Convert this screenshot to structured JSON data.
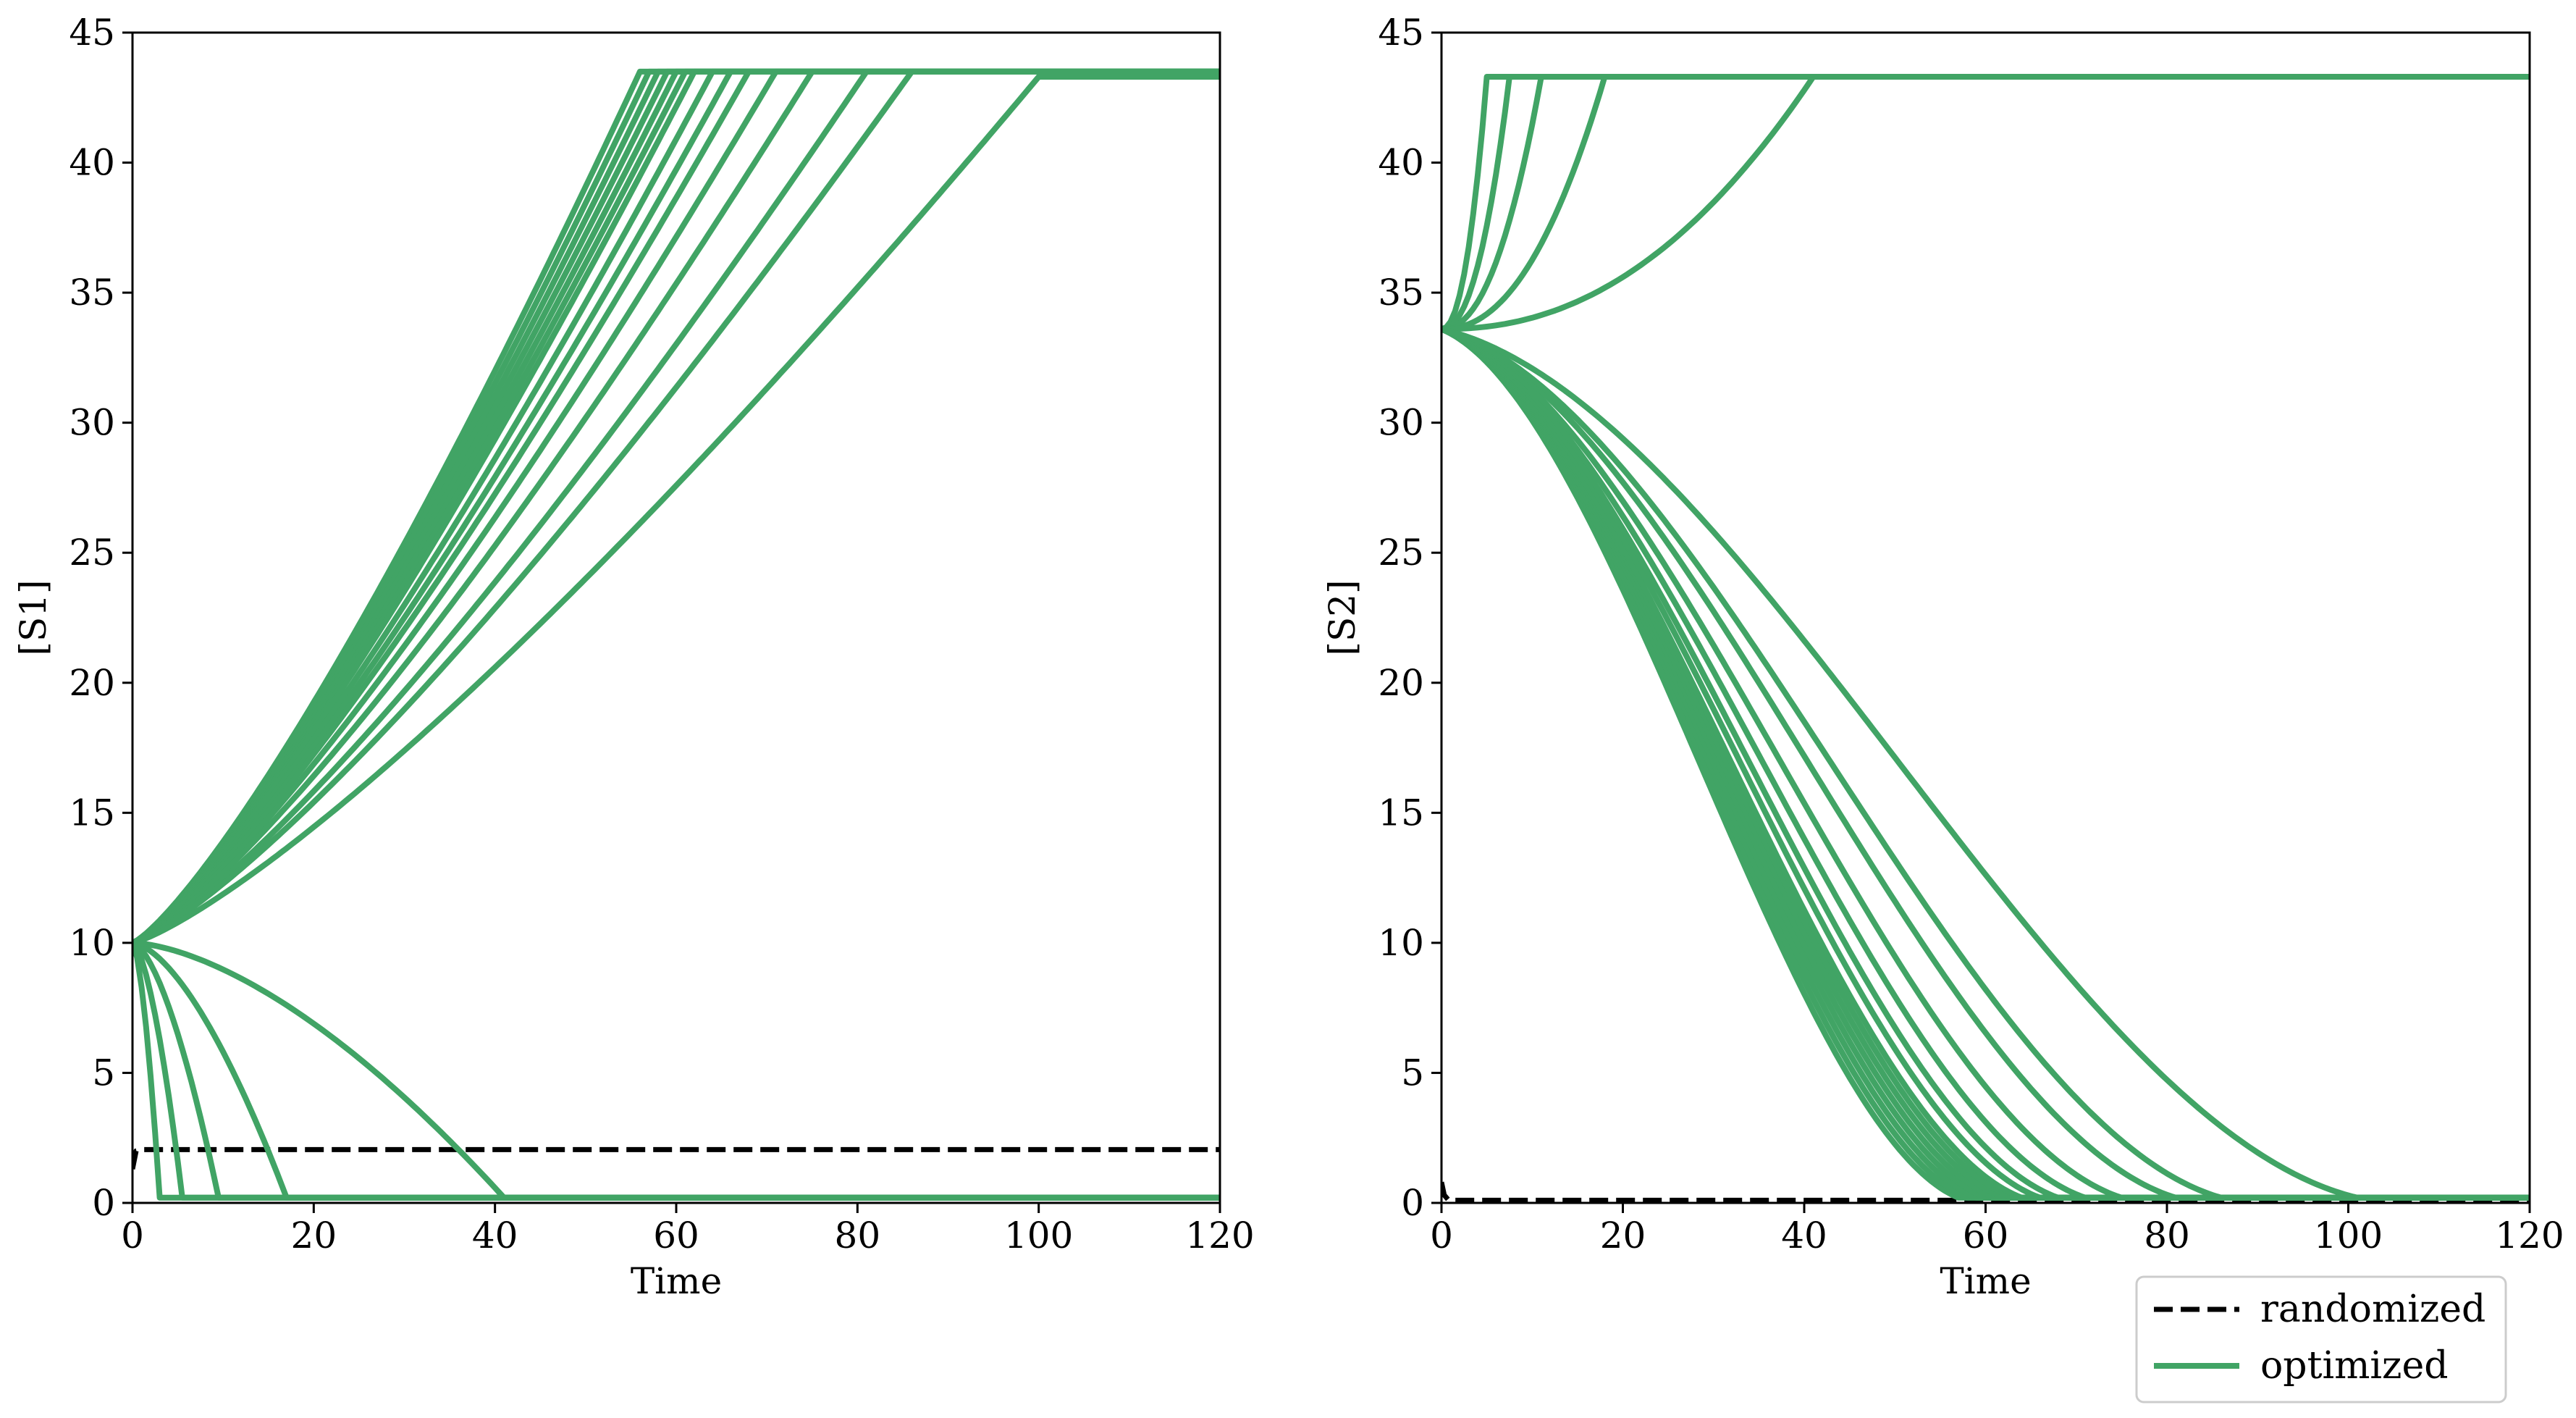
{
  "chart_data": [
    {
      "type": "line",
      "xlabel": "Time",
      "ylabel": "[S1]",
      "xlim": [
        0,
        120
      ],
      "ylim": [
        0,
        45
      ],
      "xticks": [
        "0",
        "20",
        "40",
        "60",
        "80",
        "100",
        "120"
      ],
      "yticks": [
        "0",
        "5",
        "10",
        "15",
        "20",
        "25",
        "30",
        "35",
        "40",
        "45"
      ],
      "grid": false,
      "series": [
        {
          "name": "randomized",
          "style": "dashed",
          "color": "#000000",
          "x": [
            0,
            0.4,
            1,
            120
          ],
          "y": [
            1.3,
            2.0,
            2.05,
            2.05
          ]
        },
        {
          "name": "optimized",
          "kind": "rise",
          "t_reach": 56,
          "start": 10,
          "end": 43.5
        },
        {
          "name": "optimized",
          "kind": "rise",
          "t_reach": 57,
          "start": 10,
          "end": 43.5
        },
        {
          "name": "optimized",
          "kind": "rise",
          "t_reach": 58,
          "start": 10,
          "end": 43.5
        },
        {
          "name": "optimized",
          "kind": "rise",
          "t_reach": 59,
          "start": 10,
          "end": 43.5
        },
        {
          "name": "optimized",
          "kind": "rise",
          "t_reach": 60,
          "start": 10,
          "end": 43.5
        },
        {
          "name": "optimized",
          "kind": "rise",
          "t_reach": 61,
          "start": 10,
          "end": 43.5
        },
        {
          "name": "optimized",
          "kind": "rise",
          "t_reach": 62,
          "start": 10,
          "end": 43.5
        },
        {
          "name": "optimized",
          "kind": "rise",
          "t_reach": 64,
          "start": 10,
          "end": 43.5
        },
        {
          "name": "optimized",
          "kind": "rise",
          "t_reach": 66,
          "start": 10,
          "end": 43.5
        },
        {
          "name": "optimized",
          "kind": "rise",
          "t_reach": 68,
          "start": 10,
          "end": 43.5
        },
        {
          "name": "optimized",
          "kind": "rise",
          "t_reach": 71,
          "start": 10,
          "end": 43.5
        },
        {
          "name": "optimized",
          "kind": "rise",
          "t_reach": 75,
          "start": 10,
          "end": 43.5
        },
        {
          "name": "optimized",
          "kind": "rise",
          "t_reach": 81,
          "start": 10,
          "end": 43.5
        },
        {
          "name": "optimized",
          "kind": "rise",
          "t_reach": 86,
          "start": 10,
          "end": 43.5
        },
        {
          "name": "optimized",
          "kind": "rise",
          "t_reach": 100,
          "start": 10,
          "end": 43.3
        },
        {
          "name": "optimized",
          "kind": "fall",
          "t_reach": 3,
          "start": 10,
          "end": 0.2
        },
        {
          "name": "optimized",
          "kind": "fall",
          "t_reach": 5.5,
          "start": 10,
          "end": 0.2
        },
        {
          "name": "optimized",
          "kind": "fall",
          "t_reach": 9.5,
          "start": 10,
          "end": 0.2
        },
        {
          "name": "optimized",
          "kind": "fall",
          "t_reach": 17,
          "start": 10,
          "end": 0.2
        },
        {
          "name": "optimized",
          "kind": "fall",
          "t_reach": 41,
          "start": 10,
          "end": 0.2
        }
      ]
    },
    {
      "type": "line",
      "xlabel": "Time",
      "ylabel": "[S2]",
      "xlim": [
        0,
        120
      ],
      "ylim": [
        0,
        45
      ],
      "xticks": [
        "0",
        "20",
        "40",
        "60",
        "80",
        "100",
        "120"
      ],
      "yticks": [
        "0",
        "5",
        "10",
        "15",
        "20",
        "25",
        "30",
        "35",
        "40",
        "45"
      ],
      "grid": false,
      "series": [
        {
          "name": "randomized",
          "style": "dashed",
          "color": "#000000",
          "x": [
            0,
            0.3,
            0.8,
            120
          ],
          "y": [
            0.8,
            0.3,
            0.1,
            0.1
          ]
        },
        {
          "name": "optimized",
          "kind": "rise",
          "t_reach": 5,
          "start": 33.6,
          "end": 43.3
        },
        {
          "name": "optimized",
          "kind": "rise",
          "t_reach": 7.5,
          "start": 33.6,
          "end": 43.3
        },
        {
          "name": "optimized",
          "kind": "rise",
          "t_reach": 11,
          "start": 33.6,
          "end": 43.3
        },
        {
          "name": "optimized",
          "kind": "rise",
          "t_reach": 18,
          "start": 33.6,
          "end": 43.3
        },
        {
          "name": "optimized",
          "kind": "rise",
          "t_reach": 41,
          "start": 33.6,
          "end": 43.3
        },
        {
          "name": "optimized",
          "kind": "fall",
          "t_reach": 57,
          "start": 33.6,
          "end": 0.2
        },
        {
          "name": "optimized",
          "kind": "fall",
          "t_reach": 58,
          "start": 33.6,
          "end": 0.2
        },
        {
          "name": "optimized",
          "kind": "fall",
          "t_reach": 59,
          "start": 33.6,
          "end": 0.2
        },
        {
          "name": "optimized",
          "kind": "fall",
          "t_reach": 60,
          "start": 33.6,
          "end": 0.2
        },
        {
          "name": "optimized",
          "kind": "fall",
          "t_reach": 61,
          "start": 33.6,
          "end": 0.2
        },
        {
          "name": "optimized",
          "kind": "fall",
          "t_reach": 62,
          "start": 33.6,
          "end": 0.2
        },
        {
          "name": "optimized",
          "kind": "fall",
          "t_reach": 63,
          "start": 33.6,
          "end": 0.2
        },
        {
          "name": "optimized",
          "kind": "fall",
          "t_reach": 64,
          "start": 33.6,
          "end": 0.2
        },
        {
          "name": "optimized",
          "kind": "fall",
          "t_reach": 66,
          "start": 33.6,
          "end": 0.2
        },
        {
          "name": "optimized",
          "kind": "fall",
          "t_reach": 68,
          "start": 33.6,
          "end": 0.2
        },
        {
          "name": "optimized",
          "kind": "fall",
          "t_reach": 71,
          "start": 33.6,
          "end": 0.2
        },
        {
          "name": "optimized",
          "kind": "fall",
          "t_reach": 75,
          "start": 33.6,
          "end": 0.2
        },
        {
          "name": "optimized",
          "kind": "fall",
          "t_reach": 81,
          "start": 33.6,
          "end": 0.2
        },
        {
          "name": "optimized",
          "kind": "fall",
          "t_reach": 86,
          "start": 33.6,
          "end": 0.2
        },
        {
          "name": "optimized",
          "kind": "fall",
          "t_reach": 101,
          "start": 33.6,
          "end": 0.2
        }
      ]
    }
  ],
  "legend": {
    "position": "bottom-right",
    "items": [
      {
        "label": "randomized",
        "style": "dashed",
        "color": "#000000"
      },
      {
        "label": "optimized",
        "style": "solid",
        "color": "#41a465"
      }
    ]
  },
  "colors": {
    "optimized": "#41a465",
    "randomized": "#000000"
  }
}
